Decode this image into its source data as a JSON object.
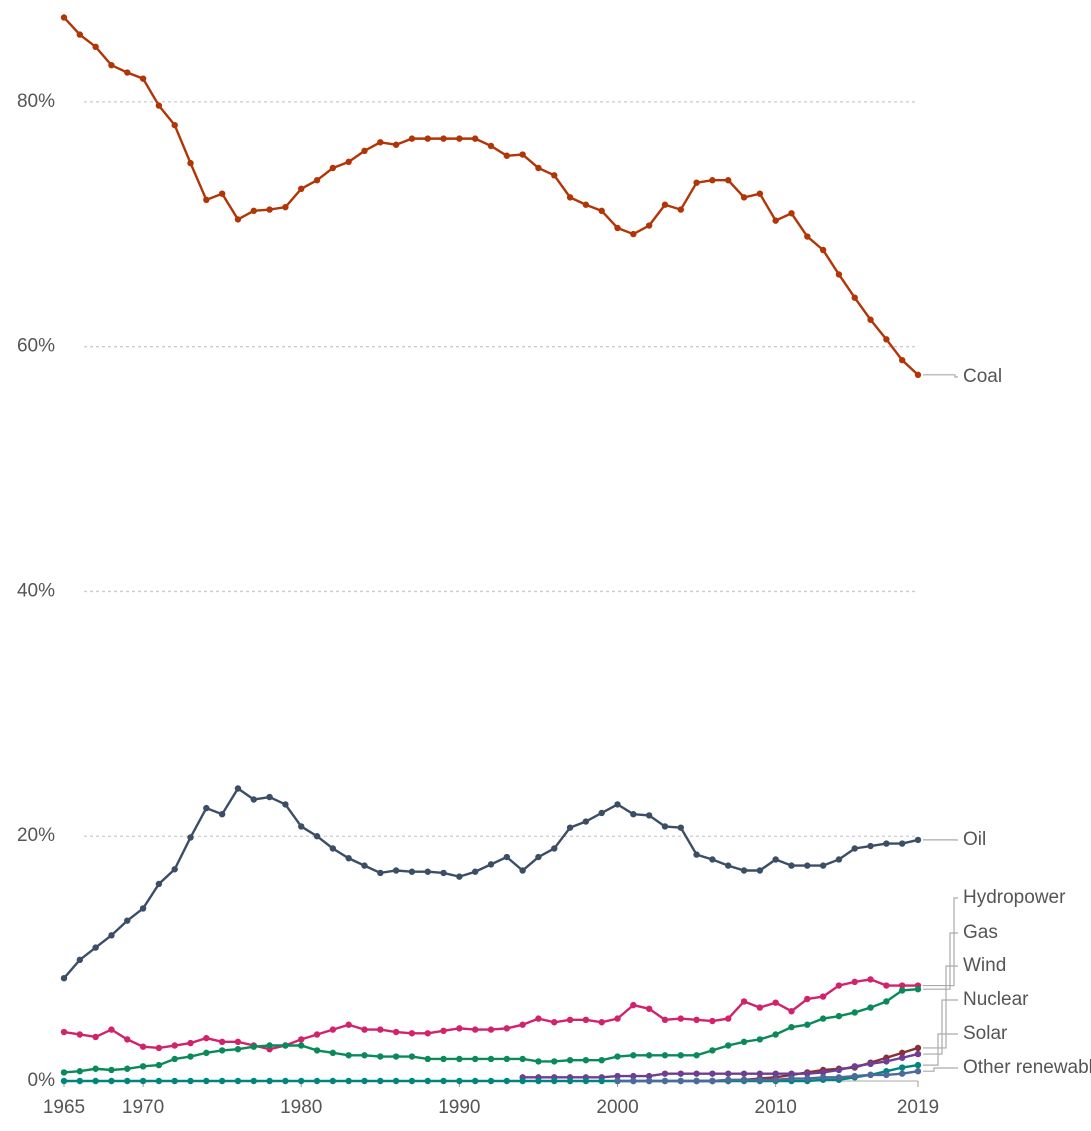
{
  "chart_data": {
    "type": "line",
    "x": [
      1965,
      1966,
      1967,
      1968,
      1969,
      1970,
      1971,
      1972,
      1973,
      1974,
      1975,
      1976,
      1977,
      1978,
      1979,
      1980,
      1981,
      1982,
      1983,
      1984,
      1985,
      1986,
      1987,
      1988,
      1989,
      1990,
      1991,
      1992,
      1993,
      1994,
      1995,
      1996,
      1997,
      1998,
      1999,
      2000,
      2001,
      2002,
      2003,
      2004,
      2005,
      2006,
      2007,
      2008,
      2009,
      2010,
      2011,
      2012,
      2013,
      2014,
      2015,
      2016,
      2017,
      2018,
      2019
    ],
    "xlim": [
      1965,
      2019
    ],
    "xticks": [
      1965,
      1970,
      1980,
      1990,
      2000,
      2010,
      2019
    ],
    "ylim": [
      0,
      88
    ],
    "yticks": [
      {
        "value": 0,
        "label": "0%"
      },
      {
        "value": 20,
        "label": "20%"
      },
      {
        "value": 40,
        "label": "40%"
      },
      {
        "value": 60,
        "label": "60%"
      },
      {
        "value": 80,
        "label": "80%"
      }
    ],
    "grid": true,
    "series": [
      {
        "name": "Coal",
        "color": "#b13507",
        "values": [
          86.9,
          85.5,
          84.5,
          83.0,
          82.4,
          81.9,
          79.7,
          78.1,
          75.0,
          72.0,
          72.5,
          70.4,
          71.1,
          71.2,
          71.4,
          72.9,
          73.6,
          74.6,
          75.1,
          76.0,
          76.7,
          76.5,
          77.0,
          77.0,
          77.0,
          77.0,
          77.0,
          76.4,
          75.6,
          75.7,
          74.6,
          74.0,
          72.2,
          71.6,
          71.1,
          69.7,
          69.2,
          69.9,
          71.6,
          71.2,
          73.4,
          73.6,
          73.6,
          72.2,
          72.5,
          70.3,
          70.9,
          69.0,
          67.9,
          65.9,
          64.0,
          62.2,
          60.6,
          58.9,
          57.7
        ]
      },
      {
        "name": "Oil",
        "color": "#3c4e66",
        "values": [
          8.4,
          9.9,
          10.9,
          11.9,
          13.1,
          14.1,
          16.1,
          17.3,
          19.9,
          22.3,
          21.8,
          23.9,
          23.0,
          23.2,
          22.6,
          20.8,
          20.0,
          19.0,
          18.2,
          17.6,
          17.0,
          17.2,
          17.1,
          17.1,
          17.0,
          16.7,
          17.1,
          17.7,
          18.3,
          17.2,
          18.3,
          19.0,
          20.7,
          21.2,
          21.9,
          22.6,
          21.8,
          21.7,
          20.8,
          20.7,
          18.5,
          18.1,
          17.6,
          17.2,
          17.2,
          18.1,
          17.6,
          17.6,
          17.6,
          18.1,
          19.0,
          19.2,
          19.4,
          19.4,
          19.7
        ]
      },
      {
        "name": "Hydropower",
        "color": "#d1236b",
        "values": [
          4.0,
          3.8,
          3.6,
          4.2,
          3.4,
          2.8,
          2.7,
          2.9,
          3.1,
          3.5,
          3.2,
          3.2,
          2.9,
          2.6,
          2.9,
          3.4,
          3.8,
          4.2,
          4.6,
          4.2,
          4.2,
          4.0,
          3.9,
          3.9,
          4.1,
          4.3,
          4.2,
          4.2,
          4.3,
          4.6,
          5.1,
          4.8,
          5.0,
          5.0,
          4.8,
          5.1,
          6.2,
          5.9,
          5.0,
          5.1,
          5.0,
          4.9,
          5.1,
          6.5,
          6.0,
          6.4,
          5.7,
          6.7,
          6.9,
          7.8,
          8.1,
          8.3,
          7.8,
          7.8,
          7.8
        ]
      },
      {
        "name": "Gas",
        "color": "#0a8a5a",
        "values": [
          0.7,
          0.8,
          1.0,
          0.9,
          1.0,
          1.2,
          1.3,
          1.8,
          2.0,
          2.3,
          2.5,
          2.6,
          2.8,
          2.9,
          2.9,
          2.9,
          2.5,
          2.3,
          2.1,
          2.1,
          2.0,
          2.0,
          2.0,
          1.8,
          1.8,
          1.8,
          1.8,
          1.8,
          1.8,
          1.8,
          1.6,
          1.6,
          1.7,
          1.7,
          1.7,
          2.0,
          2.1,
          2.1,
          2.1,
          2.1,
          2.1,
          2.5,
          2.9,
          3.2,
          3.4,
          3.8,
          4.4,
          4.6,
          5.1,
          5.3,
          5.6,
          6.0,
          6.5,
          7.4,
          7.5
        ]
      },
      {
        "name": "Wind",
        "color": "#883039",
        "values": [
          null,
          null,
          null,
          null,
          null,
          null,
          null,
          null,
          null,
          null,
          null,
          null,
          null,
          null,
          null,
          null,
          null,
          null,
          null,
          null,
          null,
          null,
          null,
          null,
          null,
          null,
          null,
          null,
          null,
          null,
          null,
          null,
          null,
          null,
          null,
          null,
          null,
          null,
          null,
          null,
          0,
          0,
          0,
          0.1,
          0.2,
          0.3,
          0.5,
          0.7,
          0.9,
          1.0,
          1.1,
          1.5,
          1.9,
          2.3,
          2.7
        ]
      },
      {
        "name": "Nuclear",
        "color": "#6d3e91",
        "values": [
          null,
          null,
          null,
          null,
          null,
          null,
          null,
          null,
          null,
          null,
          null,
          null,
          null,
          null,
          null,
          null,
          null,
          null,
          null,
          null,
          null,
          null,
          null,
          null,
          null,
          null,
          null,
          null,
          null,
          0.3,
          0.3,
          0.3,
          0.3,
          0.3,
          0.3,
          0.4,
          0.4,
          0.4,
          0.6,
          0.6,
          0.6,
          0.6,
          0.6,
          0.6,
          0.6,
          0.6,
          0.6,
          0.6,
          0.7,
          0.9,
          1.2,
          1.4,
          1.6,
          1.9,
          2.2
        ]
      },
      {
        "name": "Solar",
        "color": "#00847e",
        "values": [
          0,
          0,
          0,
          0,
          0,
          0,
          0,
          0,
          0,
          0,
          0,
          0,
          0,
          0,
          0,
          0,
          0,
          0,
          0,
          0,
          0,
          0,
          0,
          0,
          0,
          0,
          0,
          0,
          0,
          0,
          0,
          0,
          0,
          0,
          0,
          0,
          0,
          0,
          0,
          0,
          0,
          0,
          0,
          0,
          0,
          0,
          0,
          0,
          0.1,
          0.1,
          0.3,
          0.5,
          0.8,
          1.1,
          1.3
        ]
      },
      {
        "name": "Other renewables",
        "color": "#4c6a9c",
        "values": [
          null,
          null,
          null,
          null,
          null,
          null,
          null,
          null,
          null,
          null,
          null,
          null,
          null,
          null,
          null,
          null,
          null,
          null,
          null,
          null,
          null,
          null,
          null,
          null,
          null,
          null,
          null,
          null,
          null,
          null,
          null,
          null,
          null,
          null,
          null,
          0,
          0,
          0,
          0,
          0,
          0,
          0,
          0.1,
          0.1,
          0.1,
          0.1,
          0.2,
          0.2,
          0.3,
          0.3,
          0.4,
          0.5,
          0.5,
          0.6,
          0.8
        ]
      }
    ]
  }
}
